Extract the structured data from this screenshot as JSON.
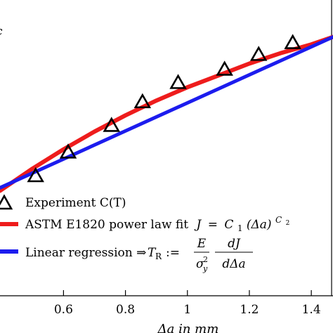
{
  "chart_data": {
    "type": "line",
    "xlabel": "Δa in mm",
    "xlim": [
      0.395,
      1.47
    ],
    "ylim": [
      0.0,
      1.0
    ],
    "x_ticks": [
      {
        "value": 0.6,
        "label": "0.6"
      },
      {
        "value": 0.8,
        "label": "0.8"
      },
      {
        "value": 1.0,
        "label": "1"
      },
      {
        "value": 1.2,
        "label": "1.2"
      },
      {
        "value": 1.4,
        "label": "1.4"
      }
    ],
    "legend_position": "lower-left",
    "series": [
      {
        "name": "Experiment C(T)",
        "marker": "triangle",
        "color": "#000000",
        "x": [
          0.51,
          0.615,
          0.755,
          0.855,
          0.97,
          1.12,
          1.23,
          1.34
        ],
        "y": [
          0.405,
          0.485,
          0.575,
          0.655,
          0.72,
          0.765,
          0.815,
          0.855
        ]
      },
      {
        "name": "ASTM E1820 power law fit",
        "formula": {
          "J": "J",
          "eq": "=",
          "C1": "C",
          "sub1": "1",
          "da": "(Δa)",
          "C2": "C",
          "sub2": "2"
        },
        "color": "#ee1c1c",
        "x": [
          0.395,
          0.5,
          0.6,
          0.7,
          0.8,
          0.9,
          1.0,
          1.1,
          1.2,
          1.3,
          1.4,
          1.47
        ],
        "y": [
          0.355,
          0.43,
          0.495,
          0.555,
          0.61,
          0.66,
          0.705,
          0.745,
          0.785,
          0.82,
          0.85,
          0.875
        ]
      },
      {
        "name": "Linear regression ⇒",
        "formula": {
          "T": "T",
          "R": "R",
          "def": ":=",
          "E": "E",
          "sigma": "σ",
          "y": "y",
          "two": "2",
          "dJ": "dJ",
          "dda": "dΔa"
        },
        "color": "#1c1cee",
        "x": [
          0.395,
          1.47
        ],
        "y": [
          0.365,
          0.875
        ]
      }
    ],
    "annotations": [
      {
        "text": "c",
        "note": "clipped glyph at top-left edge"
      }
    ]
  },
  "colors": {
    "experiment": "#000000",
    "power_fit": "#ee1c1c",
    "linear": "#1c1cee",
    "axis": "#000000"
  }
}
